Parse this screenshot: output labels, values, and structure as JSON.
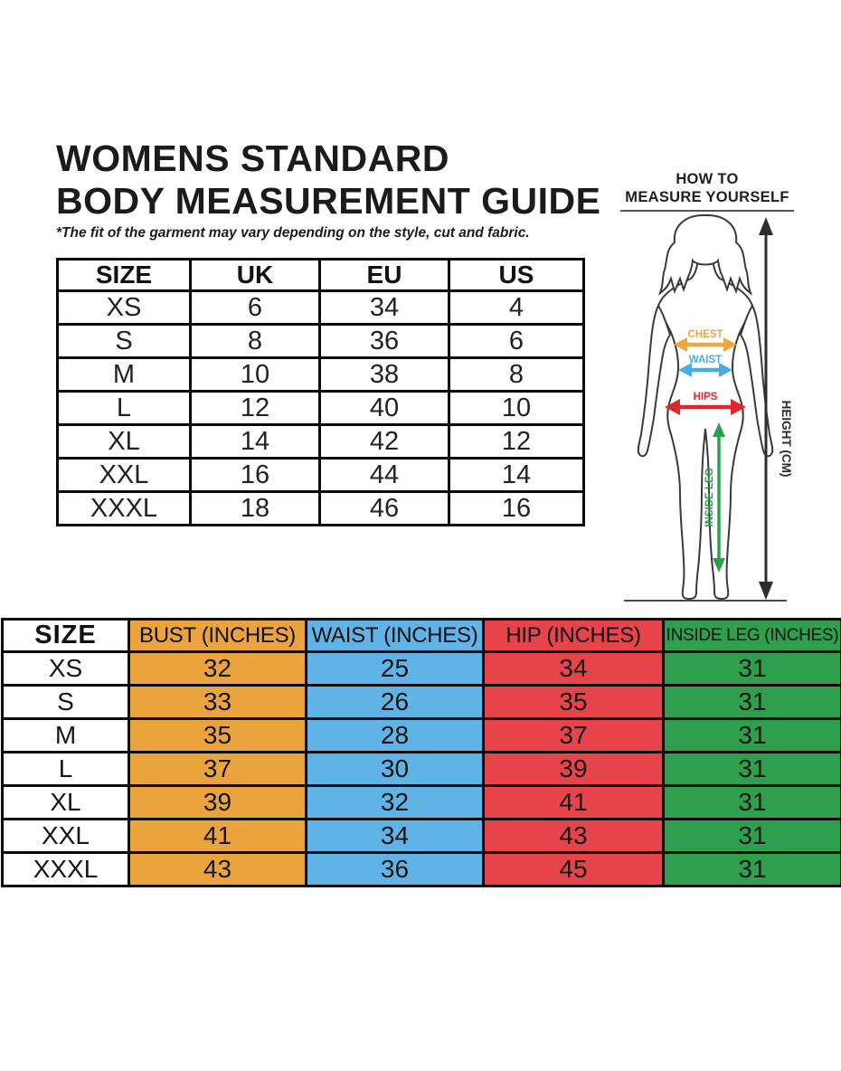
{
  "page": {
    "title_line1": "WOMENS STANDARD",
    "title_line2": "BODY MEASUREMENT GUIDE",
    "note": "*The fit of the garment may vary depending on the style, cut and fabric."
  },
  "conversion_table": {
    "headers": [
      "SIZE",
      "UK",
      "EU",
      "US"
    ],
    "rows": [
      [
        "XS",
        "6",
        "34",
        "4"
      ],
      [
        "S",
        "8",
        "36",
        "6"
      ],
      [
        "M",
        "10",
        "38",
        "8"
      ],
      [
        "L",
        "12",
        "40",
        "10"
      ],
      [
        "XL",
        "14",
        "42",
        "12"
      ],
      [
        "XXL",
        "16",
        "44",
        "14"
      ],
      [
        "XXXL",
        "18",
        "46",
        "16"
      ]
    ]
  },
  "measure_guide": {
    "title_line1": "HOW TO",
    "title_line2": "MEASURE YOURSELF",
    "labels": {
      "chest": "CHEST",
      "waist": "WAIST",
      "hips": "HIPS",
      "inside_leg": "INSIDE LEG",
      "height": "HEIGHT (CM)"
    },
    "colors": {
      "chest": "#F0A63C",
      "waist": "#45AEE5",
      "hips": "#E0262B",
      "inside_leg": "#2BA04C"
    }
  },
  "measurement_table": {
    "headers": [
      {
        "label": "SIZE",
        "color": "#FFFFFF"
      },
      {
        "label": "BUST (INCHES)",
        "color": "#EBA43D"
      },
      {
        "label": "WAIST (INCHES)",
        "color": "#5FB4E5"
      },
      {
        "label": "HIP (INCHES)",
        "color": "#E6434B"
      },
      {
        "label": "INSIDE LEG (INCHES)",
        "color": "#2F9E4D"
      }
    ],
    "rows": [
      [
        "XS",
        "32",
        "25",
        "34",
        "31"
      ],
      [
        "S",
        "33",
        "26",
        "35",
        "31"
      ],
      [
        "M",
        "35",
        "28",
        "37",
        "31"
      ],
      [
        "L",
        "37",
        "30",
        "39",
        "31"
      ],
      [
        "XL",
        "39",
        "32",
        "41",
        "31"
      ],
      [
        "XXL",
        "41",
        "34",
        "43",
        "31"
      ],
      [
        "XXXL",
        "43",
        "36",
        "45",
        "31"
      ]
    ]
  }
}
